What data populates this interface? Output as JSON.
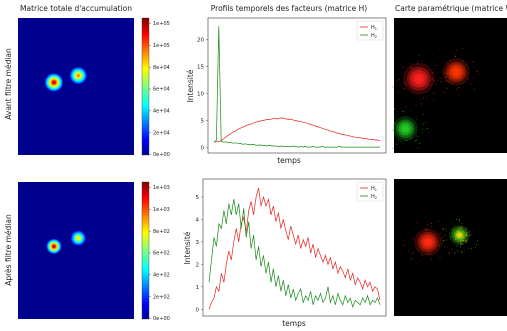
{
  "figure": {
    "row_labels": [
      "Avant filtre médian",
      "Après filtre médian"
    ],
    "panel_titles": [
      "Matrice totale d'accumulation",
      "Profils temporels des facteurs (matrice H)",
      "Carte paramétrique (matrice W)"
    ]
  },
  "colors": {
    "series_h1": "#e8231f",
    "series_h2": "#168a16",
    "image_background": "#00008f"
  },
  "chart_data": [
    {
      "type": "heatmap",
      "row": "Avant filtre médian",
      "title": "Matrice totale d'accumulation",
      "colormap": "jet",
      "colorbar_range": [
        0,
        120000
      ],
      "colorbar_ticks": [
        "0e+00",
        "2e+04",
        "4e+04",
        "6e+04",
        "8e+04",
        "1e+05",
        "1e+05"
      ],
      "hotspots": [
        {
          "cx": 0.31,
          "cy": 0.47,
          "peak": 0.9,
          "spread": 0.085
        },
        {
          "cx": 0.52,
          "cy": 0.42,
          "peak": 0.72,
          "spread": 0.08
        }
      ]
    },
    {
      "type": "line",
      "row": "Avant filtre médian",
      "title": "Profils temporels des facteurs (matrice H)",
      "xlabel": "temps",
      "ylabel": "Intensité",
      "ylim": [
        -1,
        24
      ],
      "yticks": [
        0,
        5,
        10,
        15,
        20
      ],
      "legend": [
        "H1",
        "H2"
      ],
      "legend_position": "top-right",
      "series": [
        {
          "name": "H1",
          "values": [
            1.0,
            1.2,
            1.1,
            1.3,
            1.6,
            2.0,
            2.3,
            2.6,
            2.9,
            3.1,
            3.4,
            3.6,
            3.8,
            4.0,
            4.2,
            4.3,
            4.5,
            4.6,
            4.8,
            4.9,
            5.0,
            5.1,
            5.2,
            5.2,
            5.3,
            5.4,
            5.3,
            5.4,
            5.5,
            5.4,
            5.3,
            5.2,
            5.3,
            5.1,
            5.0,
            4.9,
            4.8,
            4.7,
            4.6,
            4.5,
            4.3,
            4.2,
            4.0,
            3.9,
            3.7,
            3.6,
            3.4,
            3.3,
            3.1,
            3.0,
            2.9,
            2.7,
            2.6,
            2.5,
            2.4,
            2.3,
            2.2,
            2.1,
            2.0,
            1.9,
            1.9,
            1.8,
            1.7,
            1.7,
            1.6,
            1.5,
            1.5,
            1.4,
            1.4,
            1.3
          ]
        },
        {
          "name": "H2",
          "values": [
            0.9,
            1.4,
            22.5,
            1.2,
            1.0,
            1.1,
            0.9,
            1.0,
            0.8,
            0.9,
            0.7,
            0.8,
            0.6,
            0.7,
            0.6,
            0.5,
            0.6,
            0.5,
            0.4,
            0.5,
            0.4,
            0.4,
            0.3,
            0.4,
            0.3,
            0.3,
            0.3,
            0.2,
            0.3,
            0.2,
            0.2,
            0.2,
            0.2,
            0.3,
            0.2,
            0.1,
            0.2,
            0.1,
            0.2,
            0.1,
            0.1,
            0.2,
            0.1,
            0.1,
            0.1,
            0.2,
            0.1,
            0.1,
            0.1,
            0.1,
            0.1,
            0.1,
            0.2,
            0.1,
            0.1,
            0.1,
            0.1,
            0.1,
            0.1,
            0.1,
            0.1,
            0.1,
            0.1,
            0.1,
            0.1,
            0.1,
            0.1,
            0.1,
            0.1,
            0.1
          ]
        }
      ]
    },
    {
      "type": "heatmap",
      "row": "Avant filtre médian",
      "title": "Carte paramétrique (matrice W)",
      "hotspots": [
        {
          "cx": 0.22,
          "cy": 0.45,
          "color": "#ff2020",
          "spread": 0.14
        },
        {
          "cx": 0.55,
          "cy": 0.4,
          "color": "#ff3300",
          "spread": 0.12
        },
        {
          "cx": 0.1,
          "cy": 0.82,
          "color": "#22cc22",
          "spread": 0.11
        }
      ]
    },
    {
      "type": "heatmap",
      "row": "Après filtre médian",
      "title": "Matrice totale d'accumulation",
      "colormap": "jet",
      "colorbar_range": [
        0,
        1200
      ],
      "colorbar_ticks": [
        "0e+00",
        "2e+02",
        "4e+02",
        "6e+02",
        "8e+02",
        "1e+03",
        "1e+03"
      ],
      "hotspots": [
        {
          "cx": 0.31,
          "cy": 0.47,
          "peak": 0.92,
          "spread": 0.07
        },
        {
          "cx": 0.52,
          "cy": 0.41,
          "peak": 0.62,
          "spread": 0.07
        }
      ]
    },
    {
      "type": "line",
      "row": "Après filtre médian",
      "xlabel": "temps",
      "ylabel": "Intensité",
      "ylim": [
        -0.3,
        5.8
      ],
      "yticks": [
        0,
        1,
        2,
        3,
        4,
        5
      ],
      "legend": [
        "H1",
        "H2"
      ],
      "legend_position": "top-right",
      "series": [
        {
          "name": "H1",
          "values": [
            0.0,
            0.3,
            0.5,
            1.0,
            0.8,
            1.6,
            1.2,
            2.0,
            2.6,
            2.2,
            3.0,
            3.6,
            3.0,
            3.8,
            4.1,
            3.4,
            4.4,
            4.8,
            4.2,
            5.0,
            5.4,
            4.6,
            5.0,
            4.6,
            4.9,
            4.2,
            4.6,
            3.9,
            4.3,
            3.6,
            4.0,
            3.5,
            3.1,
            3.7,
            3.3,
            2.9,
            3.3,
            2.7,
            3.1,
            2.8,
            3.2,
            2.5,
            2.9,
            2.3,
            2.7,
            2.4,
            2.1,
            2.4,
            2.0,
            2.3,
            1.8,
            2.1,
            1.6,
            1.9,
            1.7,
            1.4,
            1.8,
            1.3,
            1.6,
            1.1,
            1.4,
            1.2,
            0.9,
            1.3,
            1.0,
            1.2,
            0.8,
            1.0,
            0.9,
            0.4
          ]
        },
        {
          "name": "H2",
          "values": [
            1.2,
            2.2,
            3.2,
            2.8,
            3.8,
            3.6,
            4.4,
            3.8,
            4.7,
            4.2,
            4.9,
            4.2,
            4.7,
            3.6,
            4.5,
            3.2,
            3.9,
            2.7,
            3.3,
            2.2,
            2.8,
            1.9,
            2.4,
            1.6,
            2.1,
            1.2,
            1.8,
            1.0,
            1.5,
            0.8,
            1.3,
            0.6,
            1.1,
            0.5,
            0.9,
            0.4,
            0.7,
            0.9,
            0.3,
            0.6,
            0.4,
            0.8,
            0.2,
            0.6,
            0.4,
            0.7,
            0.3,
            0.5,
            1.0,
            0.3,
            0.6,
            0.2,
            0.7,
            0.4,
            0.2,
            0.6,
            0.3,
            0.5,
            0.1,
            0.4,
            0.3,
            0.2,
            0.5,
            0.3,
            0.6,
            0.2,
            0.4,
            0.3,
            0.5,
            0.2
          ]
        }
      ]
    },
    {
      "type": "heatmap",
      "row": "Après filtre médian",
      "hotspots": [
        {
          "cx": 0.3,
          "cy": 0.46,
          "color": "#ff2a10",
          "spread": 0.12
        },
        {
          "cx": 0.58,
          "cy": 0.41,
          "color": "#44cc22",
          "spread": 0.09
        },
        {
          "cx": 0.58,
          "cy": 0.41,
          "color": "#ffcc00",
          "spread": 0.04
        }
      ]
    }
  ]
}
